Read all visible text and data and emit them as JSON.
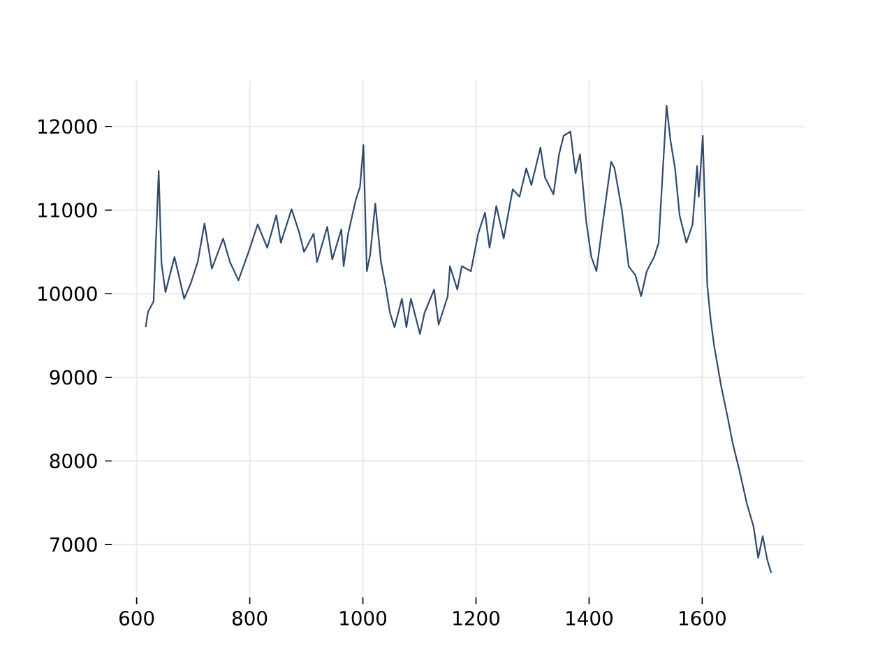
{
  "chart_data": {
    "type": "line",
    "color": "#2f4b6e",
    "grid": true,
    "xlim": [
      556,
      1781
    ],
    "ylim": [
      6370,
      12550
    ],
    "xticks": [
      600,
      800,
      1000,
      1200,
      1400,
      1600
    ],
    "yticks": [
      7000,
      8000,
      9000,
      10000,
      11000,
      12000
    ],
    "x": [
      616,
      620,
      630,
      639,
      644,
      651,
      667,
      684,
      696,
      708,
      720,
      733,
      753,
      765,
      780,
      798,
      814,
      831,
      847,
      855,
      874,
      888,
      896,
      913,
      919,
      937,
      946,
      962,
      966,
      974,
      987,
      995,
      1001,
      1007,
      1013,
      1022,
      1032,
      1040,
      1048,
      1056,
      1069,
      1077,
      1085,
      1101,
      1109,
      1126,
      1134,
      1150,
      1154,
      1167,
      1175,
      1191,
      1204,
      1216,
      1224,
      1236,
      1249,
      1265,
      1277,
      1289,
      1298,
      1314,
      1322,
      1337,
      1347,
      1355,
      1367,
      1376,
      1384,
      1395,
      1404,
      1413,
      1425,
      1439,
      1445,
      1458,
      1470,
      1482,
      1492,
      1502,
      1515,
      1523,
      1537,
      1544,
      1552,
      1560,
      1572,
      1583,
      1591,
      1594,
      1601,
      1609,
      1615,
      1621,
      1634,
      1646,
      1654,
      1666,
      1679,
      1691,
      1699,
      1707,
      1715,
      1722
    ],
    "values": [
      9600,
      9780,
      9910,
      11470,
      10360,
      10020,
      10440,
      9940,
      10130,
      10380,
      10840,
      10300,
      10660,
      10380,
      10160,
      10500,
      10830,
      10550,
      10940,
      10610,
      11010,
      10720,
      10500,
      10720,
      10380,
      10800,
      10410,
      10770,
      10330,
      10720,
      11110,
      11280,
      11780,
      10270,
      10470,
      11080,
      10380,
      10100,
      9770,
      9600,
      9940,
      9600,
      9940,
      9520,
      9770,
      10050,
      9630,
      9970,
      10330,
      10050,
      10330,
      10270,
      10720,
      10970,
      10550,
      11050,
      10660,
      11250,
      11160,
      11500,
      11300,
      11750,
      11390,
      11190,
      11670,
      11890,
      11940,
      11440,
      11670,
      10860,
      10440,
      10270,
      10890,
      11580,
      11500,
      11000,
      10330,
      10220,
      9970,
      10270,
      10440,
      10610,
      12250,
      11830,
      11500,
      10940,
      10610,
      10830,
      11530,
      11160,
      11890,
      10100,
      9690,
      9380,
      8880,
      8490,
      8210,
      7880,
      7490,
      7210,
      6840,
      7100,
      6820,
      6660
    ]
  }
}
